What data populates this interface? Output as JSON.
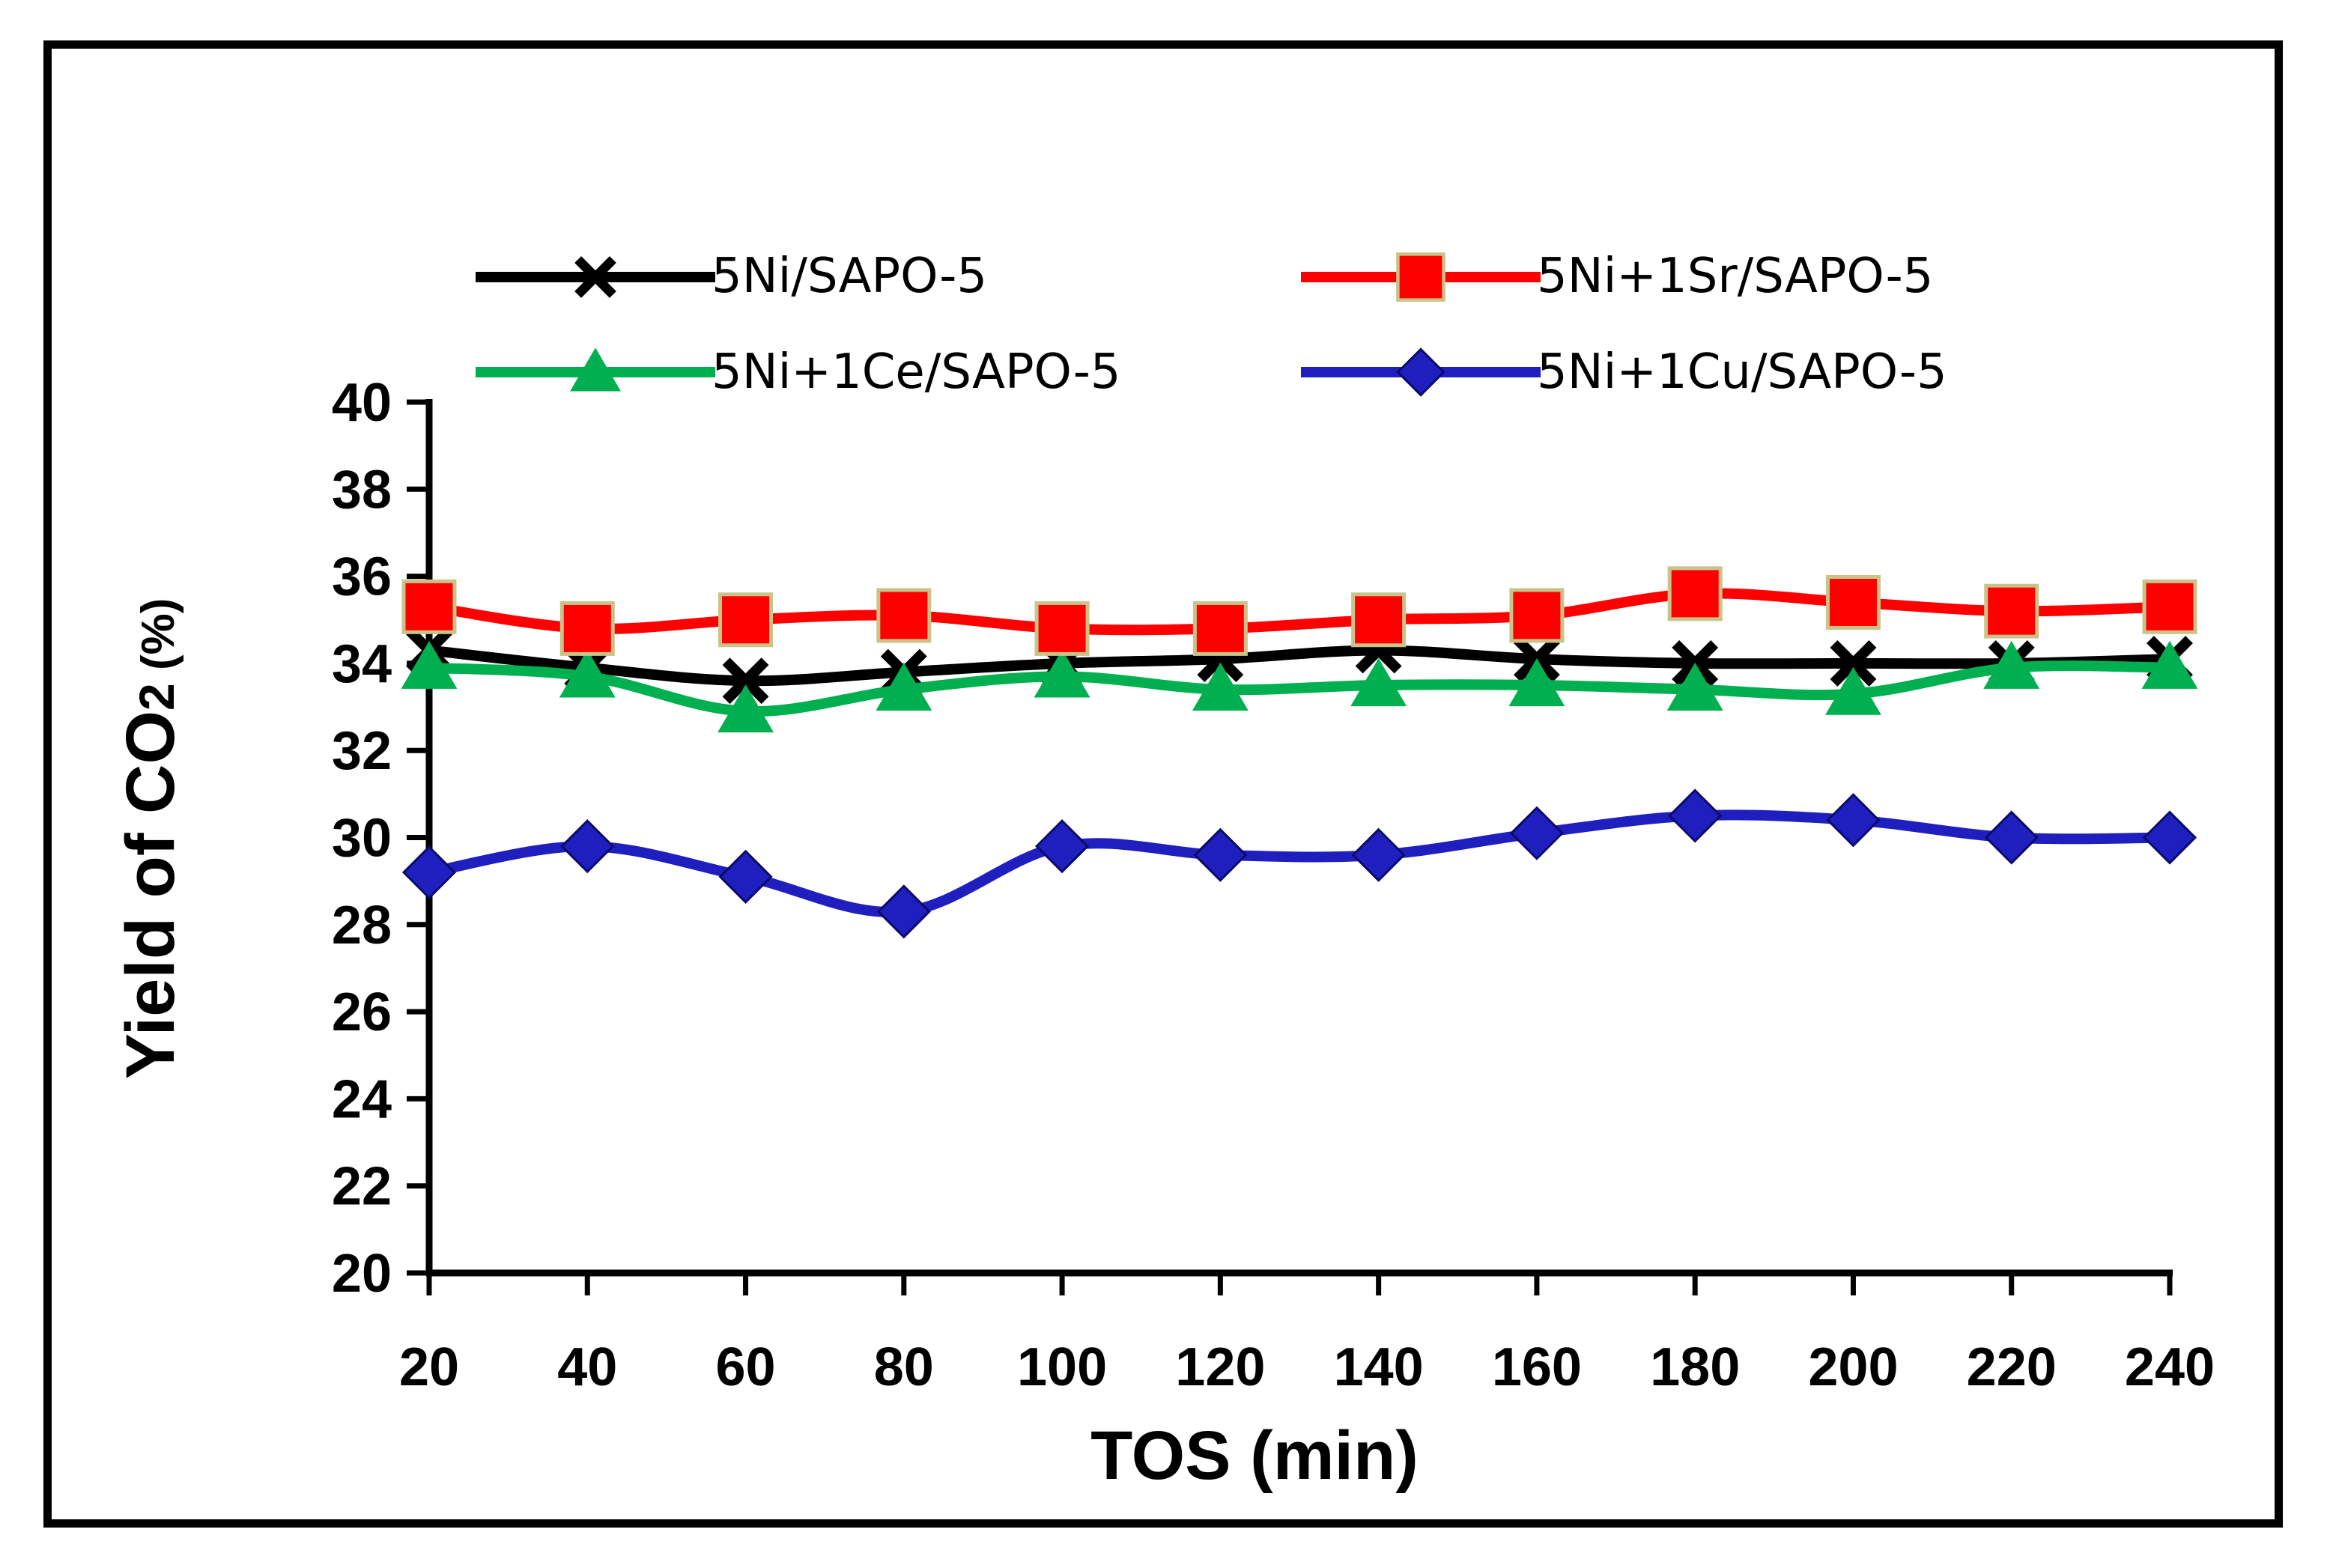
{
  "chart_data": {
    "type": "line",
    "title": "",
    "xlabel": "TOS (min)",
    "ylabel_main": "Yield of CO",
    "ylabel_sub": "2",
    "ylabel_unit": " (%)",
    "x": [
      20,
      40,
      60,
      80,
      100,
      120,
      140,
      160,
      180,
      200,
      220,
      240
    ],
    "xlim": [
      20,
      240
    ],
    "ylim": [
      20,
      40
    ],
    "yticks": [
      20,
      22,
      24,
      26,
      28,
      30,
      32,
      34,
      36,
      38,
      40
    ],
    "grid": false,
    "legend_position": "top",
    "series": [
      {
        "name": "5Ni/SAPO-5",
        "color": "#000000",
        "marker": "x",
        "values": [
          34.3,
          33.9,
          33.6,
          33.8,
          34.0,
          34.1,
          34.3,
          34.1,
          34.0,
          34.0,
          34.0,
          34.1
        ]
      },
      {
        "name": "5Ni+1Sr/SAPO-5",
        "color": "#ff0000",
        "marker": "square",
        "values": [
          35.3,
          34.8,
          35.0,
          35.1,
          34.8,
          34.8,
          35.0,
          35.1,
          35.6,
          35.4,
          35.2,
          35.3
        ]
      },
      {
        "name": "5Ni+1Ce/SAPO-5",
        "color": "#00b050",
        "marker": "triangle",
        "values": [
          33.9,
          33.7,
          32.9,
          33.4,
          33.7,
          33.4,
          33.5,
          33.5,
          33.4,
          33.3,
          33.9,
          33.9
        ]
      },
      {
        "name": "5Ni+1Cu/SAPO-5",
        "color": "#1f1fbf",
        "marker": "diamond",
        "values": [
          29.2,
          29.8,
          29.1,
          28.3,
          29.8,
          29.6,
          29.6,
          30.1,
          30.5,
          30.4,
          30.0,
          30.0
        ]
      }
    ]
  }
}
